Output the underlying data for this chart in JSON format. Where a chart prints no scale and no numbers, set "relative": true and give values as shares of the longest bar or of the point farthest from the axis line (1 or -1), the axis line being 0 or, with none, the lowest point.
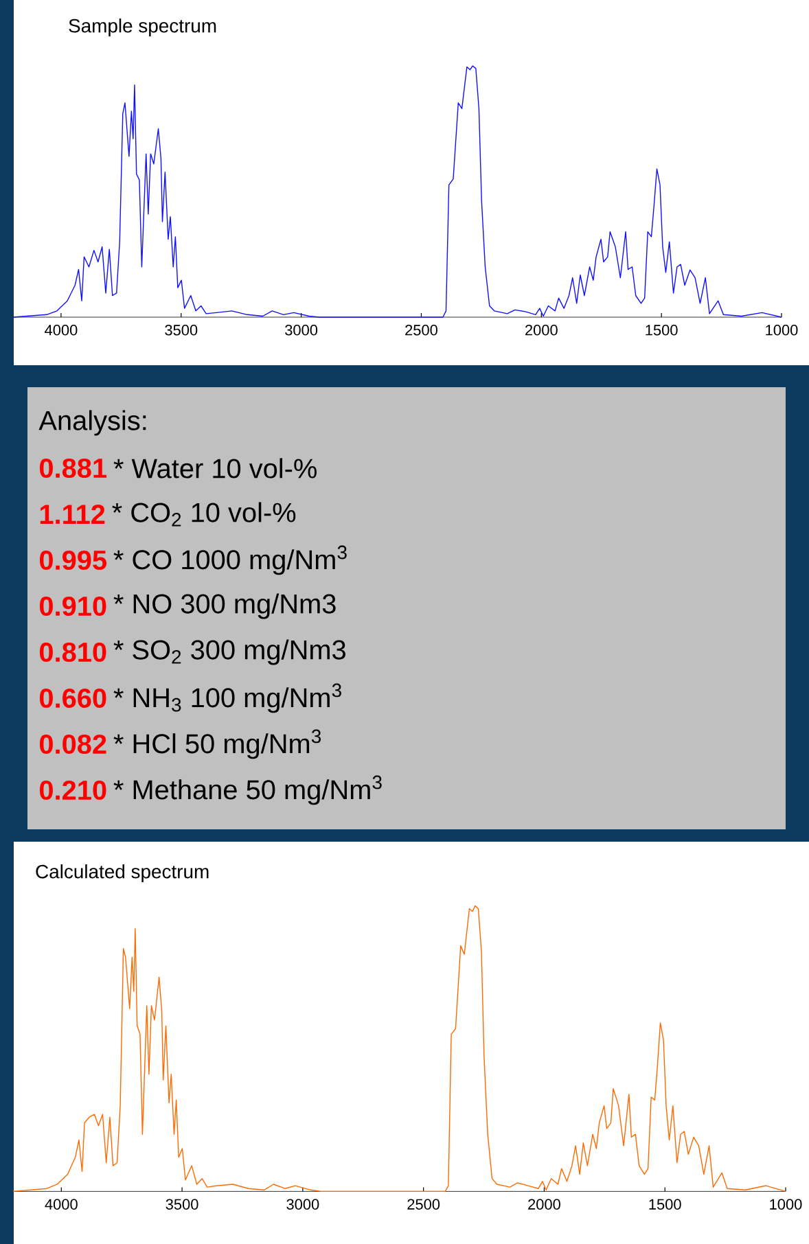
{
  "chart_data": [
    {
      "type": "line",
      "title": "Sample spectrum",
      "relative": true,
      "color": "#1010ff",
      "xlim": [
        4200,
        1000
      ],
      "xticks": [
        4000,
        3500,
        3000,
        2500,
        2000,
        1500,
        1000
      ],
      "x": [
        4200,
        4060,
        4017,
        3974,
        3942,
        3927,
        3914,
        3904,
        3884,
        3863,
        3846,
        3829,
        3814,
        3799,
        3786,
        3769,
        3756,
        3743,
        3734,
        3717,
        3707,
        3700,
        3694,
        3686,
        3674,
        3664,
        3646,
        3637,
        3627,
        3614,
        3595,
        3584,
        3578,
        3567,
        3554,
        3545,
        3533,
        3524,
        3514,
        3499,
        3486,
        3460,
        3439,
        3417,
        3396,
        3353,
        3289,
        3225,
        3160,
        3121,
        3074,
        3031,
        2967,
        2924,
        2410,
        2397,
        2385,
        2367,
        2346,
        2331,
        2310,
        2297,
        2286,
        2273,
        2260,
        2249,
        2234,
        2216,
        2196,
        2142,
        2110,
        2067,
        2024,
        2007,
        1992,
        1971,
        1943,
        1928,
        1906,
        1885,
        1870,
        1853,
        1838,
        1821,
        1799,
        1784,
        1772,
        1752,
        1741,
        1724,
        1714,
        1692,
        1671,
        1649,
        1639,
        1622,
        1607,
        1585,
        1570,
        1557,
        1542,
        1531,
        1519,
        1506,
        1495,
        1482,
        1467,
        1450,
        1435,
        1420,
        1403,
        1381,
        1360,
        1339,
        1317,
        1300,
        1264,
        1242,
        1167,
        1081,
        1000
      ],
      "values": [
        0,
        0.01,
        0.025,
        0.065,
        0.127,
        0.19,
        0.065,
        0.24,
        0.2,
        0.266,
        0.22,
        0.28,
        0.096,
        0.27,
        0.086,
        0.096,
        0.3,
        0.81,
        0.853,
        0.64,
        0.82,
        0.71,
        0.924,
        0.57,
        0.546,
        0.2,
        0.65,
        0.41,
        0.65,
        0.61,
        0.75,
        0.63,
        0.38,
        0.577,
        0.31,
        0.4,
        0.2,
        0.32,
        0.117,
        0.147,
        0.035,
        0.086,
        0.025,
        0.045,
        0.014,
        0.018,
        0.025,
        0.01,
        0.004,
        0.025,
        0.01,
        0.018,
        0.004,
        0,
        0,
        0.025,
        0.526,
        0.55,
        0.853,
        0.83,
        0.996,
        0.985,
        1,
        0.99,
        0.83,
        0.464,
        0.2,
        0.045,
        0.025,
        0.014,
        0.029,
        0.022,
        0.01,
        0.035,
        0.004,
        0.045,
        0.025,
        0.076,
        0.035,
        0.086,
        0.157,
        0.055,
        0.168,
        0.086,
        0.2,
        0.147,
        0.24,
        0.31,
        0.22,
        0.24,
        0.34,
        0.28,
        0.157,
        0.34,
        0.19,
        0.2,
        0.086,
        0.055,
        0.076,
        0.34,
        0.32,
        0.444,
        0.59,
        0.526,
        0.28,
        0.178,
        0.3,
        0.096,
        0.2,
        0.21,
        0.127,
        0.188,
        0.157,
        0.055,
        0.157,
        0.014,
        0.065,
        0.01,
        0.004,
        0.018,
        0
      ]
    },
    {
      "type": "other",
      "title": "Analysis:",
      "annotations": [
        "0.881",
        "* Water 10 vol-%",
        "1.112",
        "* CO$_{2}$ 10 vol-%",
        "0.995",
        "* CO 1000 mg/Nm$^{3}$",
        "0.910",
        "* NO 300 mg/Nm3",
        "0.810",
        "* SO$_{2}$ 300 mg/Nm3",
        "0.660",
        "* NH$_{3}$ 100 mg/Nm$^{3}$",
        "0.082",
        "* HCl 50 mg/Nm$^{3}$",
        "0.210",
        "* Methane 50 mg/Nm$^{3}$"
      ]
    },
    {
      "type": "line",
      "title": "Calculated spectrum",
      "relative": true,
      "color": "#ff6a00",
      "xlim": [
        4200,
        1000
      ],
      "xticks": [
        4000,
        3500,
        3000,
        2500,
        2000,
        1500,
        1000
      ],
      "x": [
        4200,
        4060,
        4017,
        3974,
        3942,
        3927,
        3914,
        3904,
        3884,
        3863,
        3846,
        3829,
        3814,
        3799,
        3786,
        3769,
        3756,
        3743,
        3734,
        3717,
        3707,
        3700,
        3694,
        3686,
        3674,
        3664,
        3646,
        3637,
        3627,
        3614,
        3595,
        3584,
        3578,
        3567,
        3554,
        3545,
        3533,
        3524,
        3514,
        3499,
        3486,
        3460,
        3439,
        3417,
        3396,
        3353,
        3289,
        3225,
        3160,
        3121,
        3074,
        3031,
        2967,
        2924,
        2410,
        2397,
        2385,
        2367,
        2346,
        2331,
        2310,
        2297,
        2286,
        2273,
        2260,
        2249,
        2234,
        2216,
        2196,
        2142,
        2110,
        2067,
        2024,
        2007,
        1992,
        1971,
        1943,
        1928,
        1906,
        1885,
        1870,
        1853,
        1838,
        1821,
        1799,
        1784,
        1772,
        1752,
        1741,
        1724,
        1714,
        1692,
        1671,
        1649,
        1639,
        1622,
        1607,
        1585,
        1570,
        1557,
        1542,
        1531,
        1519,
        1506,
        1495,
        1482,
        1467,
        1450,
        1435,
        1420,
        1403,
        1381,
        1360,
        1339,
        1317,
        1300,
        1264,
        1242,
        1167,
        1081,
        1000
      ],
      "values": [
        0,
        0.01,
        0.025,
        0.06,
        0.12,
        0.18,
        0.07,
        0.24,
        0.26,
        0.27,
        0.23,
        0.27,
        0.1,
        0.26,
        0.09,
        0.1,
        0.3,
        0.85,
        0.82,
        0.64,
        0.82,
        0.7,
        0.92,
        0.58,
        0.55,
        0.2,
        0.65,
        0.41,
        0.65,
        0.6,
        0.75,
        0.63,
        0.39,
        0.58,
        0.31,
        0.41,
        0.2,
        0.32,
        0.12,
        0.15,
        0.04,
        0.09,
        0.025,
        0.045,
        0.015,
        0.02,
        0.025,
        0.01,
        0.005,
        0.025,
        0.01,
        0.02,
        0.005,
        0,
        0,
        0.02,
        0.55,
        0.57,
        0.86,
        0.83,
        0.99,
        0.98,
        1,
        0.99,
        0.84,
        0.47,
        0.2,
        0.045,
        0.025,
        0.015,
        0.03,
        0.02,
        0.01,
        0.035,
        0.005,
        0.045,
        0.025,
        0.08,
        0.035,
        0.09,
        0.16,
        0.06,
        0.17,
        0.09,
        0.2,
        0.15,
        0.24,
        0.3,
        0.22,
        0.24,
        0.36,
        0.3,
        0.16,
        0.34,
        0.19,
        0.2,
        0.09,
        0.06,
        0.08,
        0.33,
        0.32,
        0.44,
        0.59,
        0.53,
        0.3,
        0.18,
        0.3,
        0.1,
        0.2,
        0.21,
        0.13,
        0.19,
        0.16,
        0.06,
        0.16,
        0.015,
        0.065,
        0.01,
        0.005,
        0.02,
        0
      ]
    }
  ]
}
